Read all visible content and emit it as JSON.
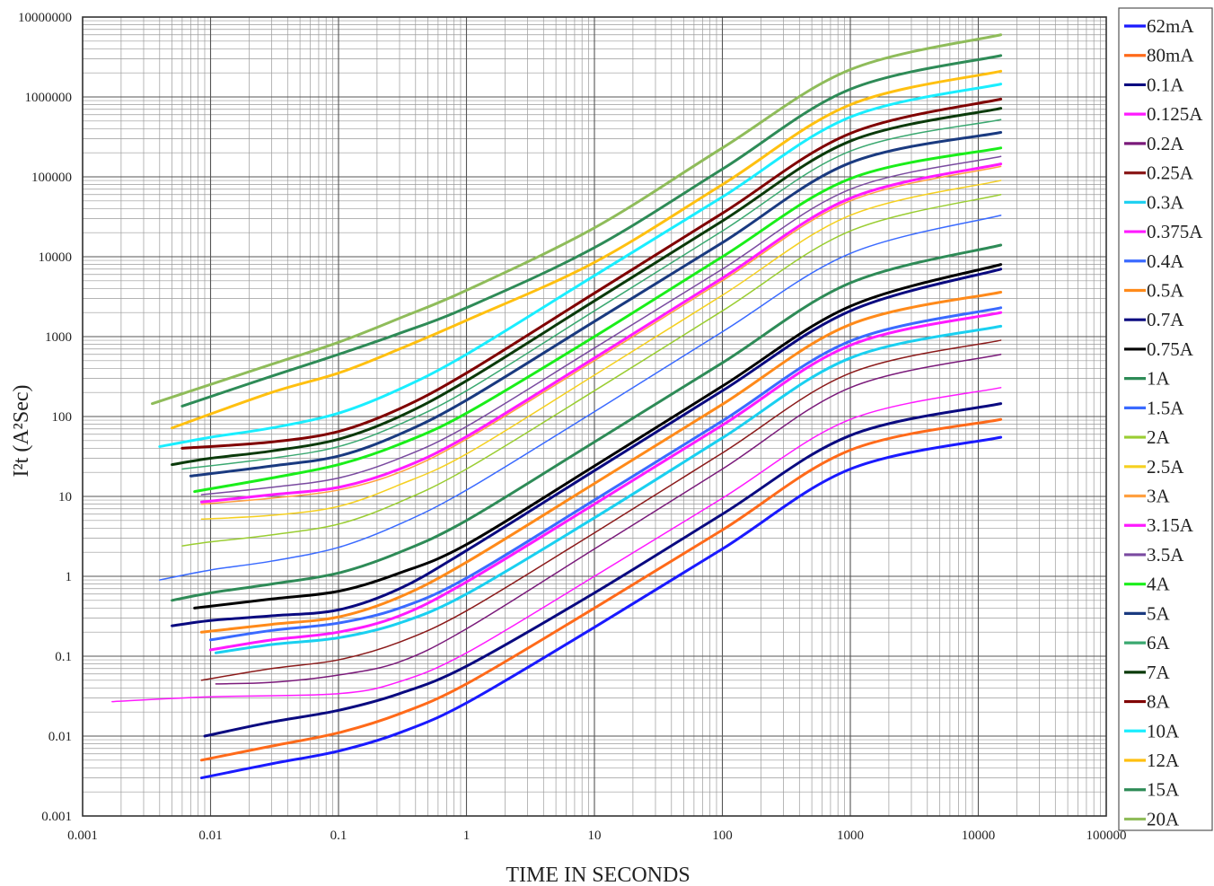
{
  "chart_data": {
    "type": "line",
    "title": "",
    "xlabel": "TIME IN SECONDS",
    "ylabel": "I²t (A²Sec)",
    "xscale": "log",
    "yscale": "log",
    "xlim": [
      0.001,
      100000
    ],
    "ylim": [
      0.001,
      10000000
    ],
    "grid": true,
    "legend_position": "right",
    "x_ticks": [
      "0.001",
      "0.01",
      "0.1",
      "1",
      "10",
      "100",
      "1000",
      "10000",
      "100000"
    ],
    "y_ticks": [
      "0.001",
      "0.01",
      "0.1",
      "1",
      "10",
      "100",
      "1000",
      "10000",
      "100000",
      "1000000",
      "10000000"
    ],
    "series": [
      {
        "name": "62mA",
        "color": "#1a1aff",
        "width": 3,
        "points": [
          [
            0.0085,
            0.003
          ],
          [
            0.03,
            0.0045
          ],
          [
            0.1,
            0.0065
          ],
          [
            0.3,
            0.011
          ],
          [
            1,
            0.026
          ],
          [
            10,
            0.23
          ],
          [
            100,
            2.2
          ],
          [
            1000,
            22
          ],
          [
            15000,
            55
          ]
        ]
      },
      {
        "name": "80mA",
        "color": "#ff6a1a",
        "width": 3,
        "points": [
          [
            0.0085,
            0.005
          ],
          [
            0.03,
            0.0075
          ],
          [
            0.1,
            0.011
          ],
          [
            0.3,
            0.019
          ],
          [
            1,
            0.045
          ],
          [
            10,
            0.4
          ],
          [
            100,
            3.8
          ],
          [
            1000,
            38
          ],
          [
            15000,
            92
          ]
        ]
      },
      {
        "name": "0.1A",
        "color": "#0a0a80",
        "width": 3,
        "points": [
          [
            0.009,
            0.01
          ],
          [
            0.03,
            0.015
          ],
          [
            0.1,
            0.021
          ],
          [
            0.3,
            0.034
          ],
          [
            1,
            0.075
          ],
          [
            10,
            0.62
          ],
          [
            100,
            6
          ],
          [
            1000,
            58
          ],
          [
            15000,
            145
          ]
        ]
      },
      {
        "name": "0.125A",
        "color": "#ff1aff",
        "width": 1.5,
        "points": [
          [
            0.0017,
            0.027
          ],
          [
            0.01,
            0.031
          ],
          [
            0.1,
            0.034
          ],
          [
            0.3,
            0.048
          ],
          [
            1,
            0.11
          ],
          [
            10,
            1
          ],
          [
            100,
            9.5
          ],
          [
            1000,
            92
          ],
          [
            15000,
            230
          ]
        ]
      },
      {
        "name": "0.2A",
        "color": "#7a1a7a",
        "width": 1.5,
        "points": [
          [
            0.011,
            0.045
          ],
          [
            0.03,
            0.047
          ],
          [
            0.1,
            0.058
          ],
          [
            0.3,
            0.085
          ],
          [
            1,
            0.22
          ],
          [
            10,
            2.2
          ],
          [
            100,
            22
          ],
          [
            1000,
            230
          ],
          [
            15000,
            600
          ]
        ]
      },
      {
        "name": "0.25A",
        "color": "#8b1a1a",
        "width": 1.5,
        "points": [
          [
            0.0085,
            0.05
          ],
          [
            0.03,
            0.07
          ],
          [
            0.1,
            0.09
          ],
          [
            0.3,
            0.15
          ],
          [
            1,
            0.37
          ],
          [
            10,
            3.5
          ],
          [
            100,
            35
          ],
          [
            1000,
            350
          ],
          [
            15000,
            900
          ]
        ]
      },
      {
        "name": "0.3A",
        "color": "#1ad0f0",
        "width": 3,
        "points": [
          [
            0.011,
            0.11
          ],
          [
            0.03,
            0.14
          ],
          [
            0.1,
            0.17
          ],
          [
            0.3,
            0.26
          ],
          [
            1,
            0.6
          ],
          [
            10,
            5.4
          ],
          [
            100,
            54
          ],
          [
            1000,
            540
          ],
          [
            15000,
            1350
          ]
        ]
      },
      {
        "name": "0.375A",
        "color": "#ff1aff",
        "width": 3,
        "points": [
          [
            0.01,
            0.12
          ],
          [
            0.03,
            0.16
          ],
          [
            0.1,
            0.2
          ],
          [
            0.3,
            0.32
          ],
          [
            1,
            0.85
          ],
          [
            10,
            8
          ],
          [
            100,
            78
          ],
          [
            1000,
            780
          ],
          [
            15000,
            2000
          ]
        ]
      },
      {
        "name": "0.4A",
        "color": "#3a6aff",
        "width": 3,
        "points": [
          [
            0.01,
            0.16
          ],
          [
            0.03,
            0.21
          ],
          [
            0.1,
            0.26
          ],
          [
            0.3,
            0.4
          ],
          [
            1,
            0.95
          ],
          [
            10,
            9
          ],
          [
            100,
            88
          ],
          [
            1000,
            880
          ],
          [
            15000,
            2300
          ]
        ]
      },
      {
        "name": "0.5A",
        "color": "#ff8a1a",
        "width": 3,
        "points": [
          [
            0.0085,
            0.2
          ],
          [
            0.03,
            0.25
          ],
          [
            0.1,
            0.31
          ],
          [
            0.3,
            0.55
          ],
          [
            1,
            1.5
          ],
          [
            10,
            14.5
          ],
          [
            100,
            142
          ],
          [
            1000,
            1420
          ],
          [
            15000,
            3600
          ]
        ]
      },
      {
        "name": "0.7A",
        "color": "#0a0a80",
        "width": 3,
        "points": [
          [
            0.005,
            0.24
          ],
          [
            0.01,
            0.28
          ],
          [
            0.03,
            0.32
          ],
          [
            0.1,
            0.38
          ],
          [
            0.3,
            0.7
          ],
          [
            1,
            2.1
          ],
          [
            10,
            21
          ],
          [
            100,
            210
          ],
          [
            1000,
            2100
          ],
          [
            15000,
            7000
          ]
        ]
      },
      {
        "name": "0.75A",
        "color": "#000000",
        "width": 3,
        "points": [
          [
            0.0075,
            0.4
          ],
          [
            0.03,
            0.52
          ],
          [
            0.1,
            0.65
          ],
          [
            0.3,
            1.1
          ],
          [
            1,
            2.5
          ],
          [
            10,
            24
          ],
          [
            100,
            240
          ],
          [
            1000,
            2400
          ],
          [
            15000,
            8000
          ]
        ]
      },
      {
        "name": "1A",
        "color": "#2e8b57",
        "width": 3,
        "points": [
          [
            0.005,
            0.5
          ],
          [
            0.01,
            0.62
          ],
          [
            0.03,
            0.8
          ],
          [
            0.1,
            1.1
          ],
          [
            0.3,
            2
          ],
          [
            1,
            5
          ],
          [
            10,
            48
          ],
          [
            100,
            470
          ],
          [
            1000,
            4700
          ],
          [
            15000,
            14000
          ]
        ]
      },
      {
        "name": "1.5A",
        "color": "#3a6aff",
        "width": 1.5,
        "points": [
          [
            0.004,
            0.9
          ],
          [
            0.01,
            1.2
          ],
          [
            0.03,
            1.55
          ],
          [
            0.1,
            2.3
          ],
          [
            0.3,
            4.5
          ],
          [
            1,
            12
          ],
          [
            10,
            115
          ],
          [
            100,
            1150
          ],
          [
            1000,
            11000
          ],
          [
            15000,
            33000
          ]
        ]
      },
      {
        "name": "2A",
        "color": "#9acd32",
        "width": 1.5,
        "points": [
          [
            0.006,
            2.4
          ],
          [
            0.01,
            2.7
          ],
          [
            0.03,
            3.3
          ],
          [
            0.1,
            4.5
          ],
          [
            0.3,
            8.5
          ],
          [
            1,
            22
          ],
          [
            10,
            210
          ],
          [
            100,
            2100
          ],
          [
            1000,
            21000
          ],
          [
            15000,
            60000
          ]
        ]
      },
      {
        "name": "2.5A",
        "color": "#f5d020",
        "width": 1.5,
        "points": [
          [
            0.0085,
            5.2
          ],
          [
            0.03,
            5.8
          ],
          [
            0.1,
            7.5
          ],
          [
            0.3,
            14
          ],
          [
            1,
            34
          ],
          [
            10,
            330
          ],
          [
            100,
            3300
          ],
          [
            1000,
            33000
          ],
          [
            15000,
            90000
          ]
        ]
      },
      {
        "name": "3A",
        "color": "#ffa040",
        "width": 1.5,
        "points": [
          [
            0.0085,
            8
          ],
          [
            0.03,
            9.5
          ],
          [
            0.1,
            12
          ],
          [
            0.3,
            20
          ],
          [
            1,
            52
          ],
          [
            10,
            500
          ],
          [
            100,
            5000
          ],
          [
            1000,
            50000
          ],
          [
            15000,
            135000
          ]
        ]
      },
      {
        "name": "3.15A",
        "color": "#ff1aff",
        "width": 3,
        "points": [
          [
            0.0085,
            8.5
          ],
          [
            0.03,
            10.5
          ],
          [
            0.1,
            13
          ],
          [
            0.3,
            22
          ],
          [
            1,
            56
          ],
          [
            10,
            540
          ],
          [
            100,
            5400
          ],
          [
            1000,
            54000
          ],
          [
            15000,
            145000
          ]
        ]
      },
      {
        "name": "3.5A",
        "color": "#7a4aa0",
        "width": 1.5,
        "points": [
          [
            0.0085,
            10.5
          ],
          [
            0.03,
            13
          ],
          [
            0.1,
            17
          ],
          [
            0.3,
            30
          ],
          [
            1,
            75
          ],
          [
            10,
            720
          ],
          [
            100,
            7000
          ],
          [
            1000,
            70000
          ],
          [
            15000,
            180000
          ]
        ]
      },
      {
        "name": "4A",
        "color": "#1aee1a",
        "width": 3,
        "points": [
          [
            0.0075,
            11.5
          ],
          [
            0.03,
            17
          ],
          [
            0.1,
            25
          ],
          [
            0.3,
            45
          ],
          [
            1,
            110
          ],
          [
            10,
            1000
          ],
          [
            100,
            10000
          ],
          [
            1000,
            95000
          ],
          [
            15000,
            230000
          ]
        ]
      },
      {
        "name": "5A",
        "color": "#1a3a80",
        "width": 3,
        "points": [
          [
            0.007,
            18
          ],
          [
            0.03,
            24
          ],
          [
            0.1,
            32
          ],
          [
            0.3,
            60
          ],
          [
            1,
            160
          ],
          [
            10,
            1550
          ],
          [
            100,
            15000
          ],
          [
            1000,
            150000
          ],
          [
            15000,
            360000
          ]
        ]
      },
      {
        "name": "6A",
        "color": "#3aa870",
        "width": 1.5,
        "points": [
          [
            0.006,
            22
          ],
          [
            0.03,
            30
          ],
          [
            0.1,
            42
          ],
          [
            0.3,
            80
          ],
          [
            1,
            210
          ],
          [
            10,
            2100
          ],
          [
            100,
            21000
          ],
          [
            1000,
            210000
          ],
          [
            15000,
            520000
          ]
        ]
      },
      {
        "name": "7A",
        "color": "#0a3a0a",
        "width": 3,
        "points": [
          [
            0.005,
            25
          ],
          [
            0.01,
            30
          ],
          [
            0.03,
            37
          ],
          [
            0.1,
            52
          ],
          [
            0.3,
            100
          ],
          [
            1,
            280
          ],
          [
            10,
            2800
          ],
          [
            100,
            28000
          ],
          [
            1000,
            280000
          ],
          [
            15000,
            720000
          ]
        ]
      },
      {
        "name": "8A",
        "color": "#800000",
        "width": 3,
        "points": [
          [
            0.006,
            40
          ],
          [
            0.03,
            48
          ],
          [
            0.1,
            65
          ],
          [
            0.3,
            125
          ],
          [
            1,
            350
          ],
          [
            10,
            3500
          ],
          [
            100,
            35000
          ],
          [
            1000,
            350000
          ],
          [
            15000,
            940000
          ]
        ]
      },
      {
        "name": "10A",
        "color": "#1aeeff",
        "width": 3,
        "points": [
          [
            0.004,
            42
          ],
          [
            0.01,
            55
          ],
          [
            0.03,
            72
          ],
          [
            0.1,
            110
          ],
          [
            0.3,
            220
          ],
          [
            1,
            600
          ],
          [
            10,
            5800
          ],
          [
            100,
            56000
          ],
          [
            1000,
            560000
          ],
          [
            15000,
            1450000
          ]
        ]
      },
      {
        "name": "12A",
        "color": "#ffc010",
        "width": 3,
        "points": [
          [
            0.005,
            72
          ],
          [
            0.03,
            200
          ],
          [
            0.1,
            350
          ],
          [
            0.3,
            700
          ],
          [
            1,
            1600
          ],
          [
            10,
            8500
          ],
          [
            100,
            80000
          ],
          [
            1000,
            800000
          ],
          [
            15000,
            2100000
          ]
        ]
      },
      {
        "name": "15A",
        "color": "#2e8b57",
        "width": 3,
        "points": [
          [
            0.006,
            135
          ],
          [
            0.03,
            320
          ],
          [
            0.1,
            600
          ],
          [
            0.3,
            1100
          ],
          [
            1,
            2300
          ],
          [
            10,
            13000
          ],
          [
            100,
            125000
          ],
          [
            1000,
            1250000
          ],
          [
            15000,
            3300000
          ]
        ]
      },
      {
        "name": "20A",
        "color": "#8fbc5a",
        "width": 3,
        "points": [
          [
            0.0035,
            145
          ],
          [
            0.03,
            450
          ],
          [
            0.1,
            850
          ],
          [
            0.3,
            1700
          ],
          [
            1,
            3800
          ],
          [
            10,
            23000
          ],
          [
            100,
            230000
          ],
          [
            1000,
            2200000
          ],
          [
            15000,
            6000000
          ]
        ]
      }
    ]
  }
}
